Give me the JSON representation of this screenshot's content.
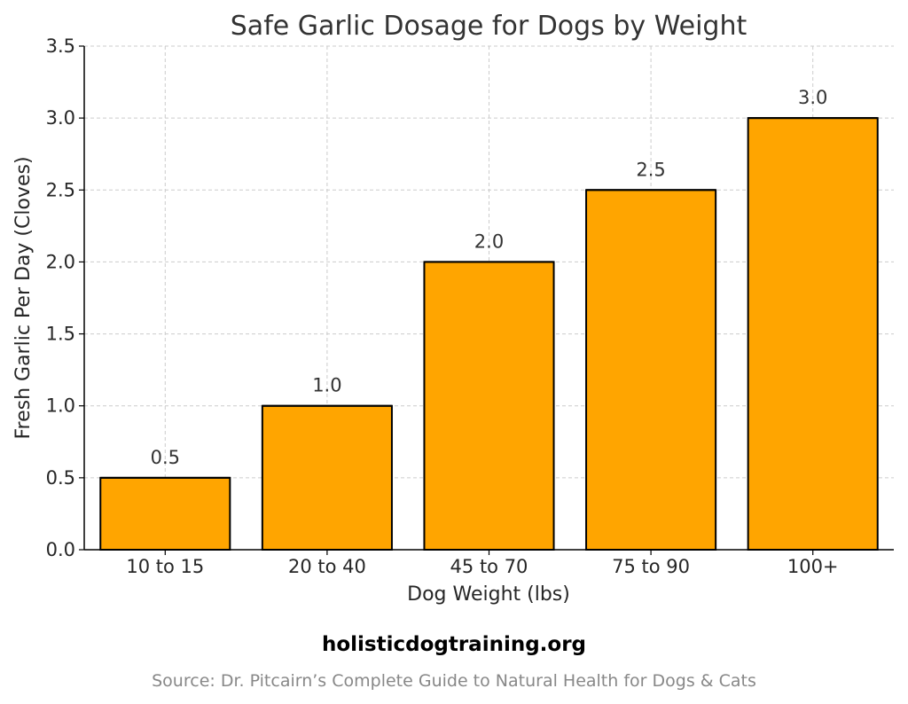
{
  "chart_data": {
    "type": "bar",
    "title": "Safe Garlic Dosage for Dogs by Weight",
    "xlabel": "Dog Weight (lbs)",
    "ylabel": "Fresh Garlic Per Day (Cloves)",
    "categories": [
      "10 to 15",
      "20 to 40",
      "45 to 70",
      "75 to 90",
      "100+"
    ],
    "values": [
      0.5,
      1.0,
      2.0,
      2.5,
      3.0
    ],
    "data_labels": [
      "0.5",
      "1.0",
      "2.0",
      "2.5",
      "3.0"
    ],
    "ylim": [
      0,
      3.5
    ],
    "yticks": [
      0,
      0.5,
      1.0,
      1.5,
      2.0,
      2.5,
      3.0,
      3.5
    ],
    "ytick_labels": [
      "0.0",
      "0.5",
      "1.0",
      "1.5",
      "2.0",
      "2.5",
      "3.0",
      "3.5"
    ],
    "grid": true,
    "bar_color": "#FFA500",
    "bar_edge_color": "#000000"
  },
  "footer": {
    "site": "holisticdogtraining.org",
    "source": "Source: Dr. Pitcairn’s Complete Guide to Natural Health for Dogs & Cats"
  }
}
